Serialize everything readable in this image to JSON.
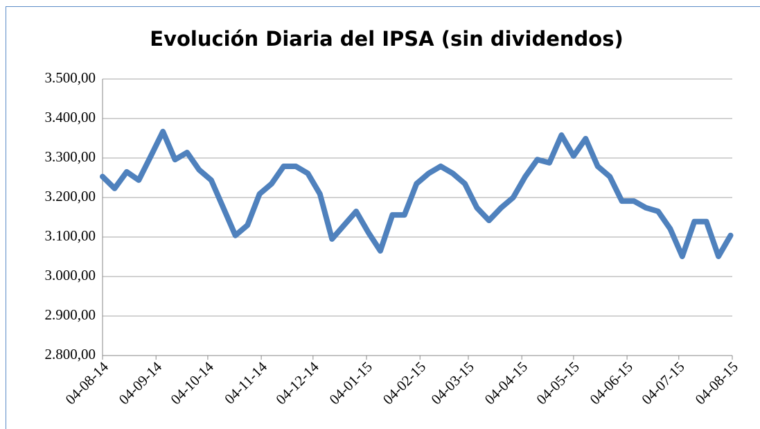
{
  "chart_data": {
    "type": "line",
    "title": "Evolución Diaria del IPSA (sin dividendos)",
    "x": [
      "04-08-14",
      "11-08-14",
      "18-08-14",
      "25-08-14",
      "01-09-14",
      "08-09-14",
      "15-09-14",
      "22-09-14",
      "29-09-14",
      "06-10-14",
      "13-10-14",
      "20-10-14",
      "27-10-14",
      "03-11-14",
      "10-11-14",
      "17-11-14",
      "24-11-14",
      "01-12-14",
      "08-12-14",
      "15-12-14",
      "22-12-14",
      "29-12-14",
      "05-01-15",
      "12-01-15",
      "19-01-15",
      "26-01-15",
      "02-02-15",
      "09-02-15",
      "16-02-15",
      "23-02-15",
      "02-03-15",
      "09-03-15",
      "16-03-15",
      "23-03-15",
      "30-03-15",
      "06-04-15",
      "13-04-15",
      "20-04-15",
      "27-04-15",
      "04-05-15",
      "11-05-15",
      "18-05-15",
      "25-05-15",
      "01-06-15",
      "08-06-15",
      "15-06-15",
      "22-06-15",
      "29-06-15",
      "06-07-15",
      "13-07-15",
      "20-07-15",
      "27-07-15",
      "03-08-15"
    ],
    "series": [
      {
        "color": "#4f81bd",
        "values": [
          3253,
          3223,
          3265,
          3244,
          3305,
          3367,
          3296,
          3314,
          3270,
          3244,
          3174,
          3104,
          3130,
          3209,
          3235,
          3279,
          3279,
          3261,
          3209,
          3095,
          3130,
          3165,
          3112,
          3065,
          3156,
          3156,
          3235,
          3261,
          3279,
          3261,
          3235,
          3174,
          3142,
          3174,
          3200,
          3253,
          3296,
          3288,
          3358,
          3305,
          3349,
          3279,
          3253,
          3191,
          3191,
          3174,
          3165,
          3121,
          3051,
          3139,
          3139,
          3051,
          3104
        ]
      }
    ],
    "xlim": [
      "04-08-14",
      "04-08-15"
    ],
    "xticks": [
      "04-08-14",
      "04-09-14",
      "04-10-14",
      "04-11-14",
      "04-12-14",
      "04-01-15",
      "04-02-15",
      "04-03-15",
      "04-04-15",
      "04-05-15",
      "04-06-15",
      "04-07-15",
      "04-08-15"
    ],
    "ylim": [
      2800,
      3500
    ],
    "yticks": [
      {
        "value": 2800,
        "label": "2.800,00"
      },
      {
        "value": 2900,
        "label": "2.900,00"
      },
      {
        "value": 3000,
        "label": "3.000,00"
      },
      {
        "value": 3100,
        "label": "3.100,00"
      },
      {
        "value": 3200,
        "label": "3.200,00"
      },
      {
        "value": 3300,
        "label": "3.300,00"
      },
      {
        "value": 3400,
        "label": "3.400,00"
      },
      {
        "value": 3500,
        "label": "3.500,00"
      }
    ],
    "grid": true
  }
}
